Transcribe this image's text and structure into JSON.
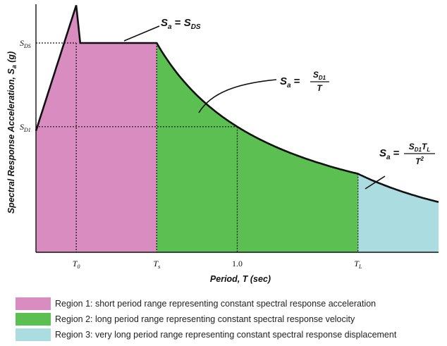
{
  "chart_data": {
    "type": "area",
    "xlabel": "Period, T (sec)",
    "ylabel": "Spectral Response Acceleration, Sa (g)",
    "ylabel_parts": {
      "main": "Spectral Response Acceleration, S",
      "sub": "a",
      "unit": " (g)"
    },
    "x_ticks": [
      {
        "id": "T0",
        "main": "T",
        "sub": "0",
        "value": 0.2
      },
      {
        "id": "Ts",
        "main": "T",
        "sub": "s",
        "value": 0.6
      },
      {
        "id": "one",
        "main": "1.0",
        "sub": "",
        "value": 1.0
      },
      {
        "id": "TL",
        "main": "T",
        "sub": "L",
        "value": 1.6
      }
    ],
    "y_ticks": [
      {
        "id": "SDS",
        "main": "S",
        "sub": "DS",
        "value": 1.0
      },
      {
        "id": "SD1",
        "main": "S",
        "sub": "D1",
        "value": 0.6
      }
    ],
    "xlim": [
      0.0,
      2.0
    ],
    "ylim": [
      0.0,
      1.0
    ],
    "constants": {
      "SDS": 1.0,
      "SD1": 0.6,
      "T0": 0.2,
      "Ts": 0.6,
      "TL": 1.6
    },
    "regions": [
      {
        "name": "Region 1: short period range representing constant spectral response acceleration",
        "x_range": [
          0.0,
          0.6
        ],
        "color": "#d98cc0"
      },
      {
        "name": "Region 2: long period range representing constant spectral response velocity",
        "x_range": [
          0.6,
          1.6
        ],
        "color": "#5cbf52"
      },
      {
        "name": "Region 3: very long period range representing constant spectral response displacement",
        "x_range": [
          1.6,
          2.0
        ],
        "color": "#abdce0"
      }
    ],
    "equations": {
      "eq1": {
        "lhs_main": "S",
        "lhs_sub": "a",
        "eq": " = ",
        "rhs_main": "S",
        "rhs_sub": "DS"
      },
      "eq2": {
        "lhs_main": "S",
        "lhs_sub": "a",
        "eq": " = ",
        "num_main": "S",
        "num_sub": "D1",
        "den": "T"
      },
      "eq3": {
        "lhs_main": "S",
        "lhs_sub": "a",
        "eq": " = ",
        "num_main": "S",
        "num_sub": "D1",
        "num_main2": "T",
        "num_sub2": "L",
        "den_main": "T",
        "den_sup": "2"
      }
    },
    "grid": false,
    "legend_placement": "bottom"
  }
}
